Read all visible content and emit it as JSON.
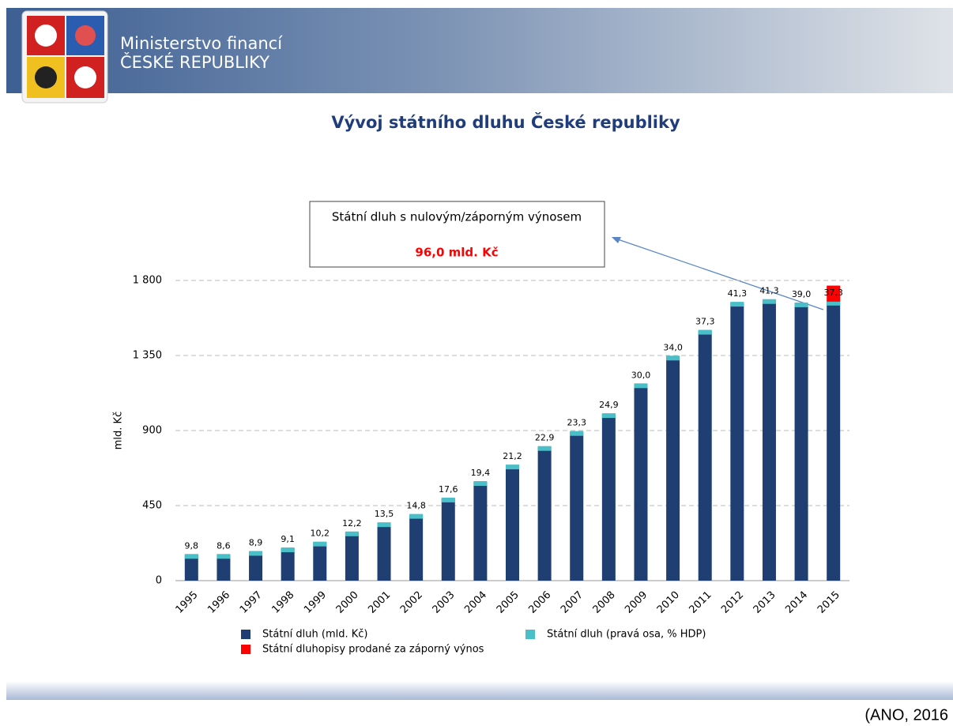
{
  "header": {
    "ministry": "Ministerstvo financí",
    "country": "ČESKÉ REPUBLIKY"
  },
  "source": "(ANO, 2016",
  "chart_data": {
    "type": "bar",
    "title": "Vývoj státního dluhu České republiky",
    "ylabel": "mld. Kč",
    "annotation": "Státní dluh s nulovým/záporným výnosem",
    "categories": [
      "1995",
      "1996",
      "1997",
      "1998",
      "1999",
      "2000",
      "2001",
      "2002",
      "2003",
      "2004",
      "2005",
      "2006",
      "2007",
      "2008",
      "2009",
      "2010",
      "2011",
      "2012",
      "2013",
      "2014",
      "2015"
    ],
    "series": [
      {
        "name": "Státní dluh (mld. Kč)",
        "color": "#1f3f73",
        "values": [
          155,
          155,
          173,
          194,
          229,
          290,
          345,
          395,
          493,
          592,
          691,
          802,
          892,
          999,
          1178,
          1344,
          1499,
          1667,
          1683,
          1663,
          1673
        ]
      },
      {
        "name": "Státní dluh (pravá osa, % HDP)",
        "color": "#4bbfc8",
        "values": [
          9.8,
          8.6,
          8.9,
          9.1,
          10.2,
          12.2,
          13.5,
          14.8,
          17.6,
          19.4,
          21.2,
          22.9,
          23.3,
          24.9,
          30.0,
          34.0,
          37.3,
          41.3,
          41.3,
          39.0,
          37.3
        ],
        "value_labels": [
          "9,8",
          "8,6",
          "8,9",
          "9,1",
          "10,2",
          "12,2",
          "13,5",
          "14,8",
          "17,6",
          "19,4",
          "21,2",
          "22,9",
          "23,3",
          "24,9",
          "30,0",
          "34,0",
          "37,3",
          "41,3",
          "41,3",
          "39,0",
          "37,3"
        ]
      },
      {
        "name": "Státní dluhopisy prodané za záporný výnos",
        "color": "#ff0000",
        "values": [
          null,
          null,
          null,
          null,
          null,
          null,
          null,
          null,
          null,
          null,
          null,
          null,
          null,
          null,
          null,
          null,
          null,
          null,
          null,
          null,
          96.0
        ],
        "value_labels": [
          null,
          null,
          null,
          null,
          null,
          null,
          null,
          null,
          null,
          null,
          null,
          null,
          null,
          null,
          null,
          null,
          null,
          null,
          null,
          null,
          "96,0 mld. Kč"
        ]
      }
    ],
    "ylim": [
      0,
      1800
    ],
    "yticks": [
      0,
      450,
      900,
      {
        "value": 1350,
        "label": "1 350"
      },
      {
        "value": 1800,
        "label": "1 800"
      }
    ],
    "grid": true
  }
}
